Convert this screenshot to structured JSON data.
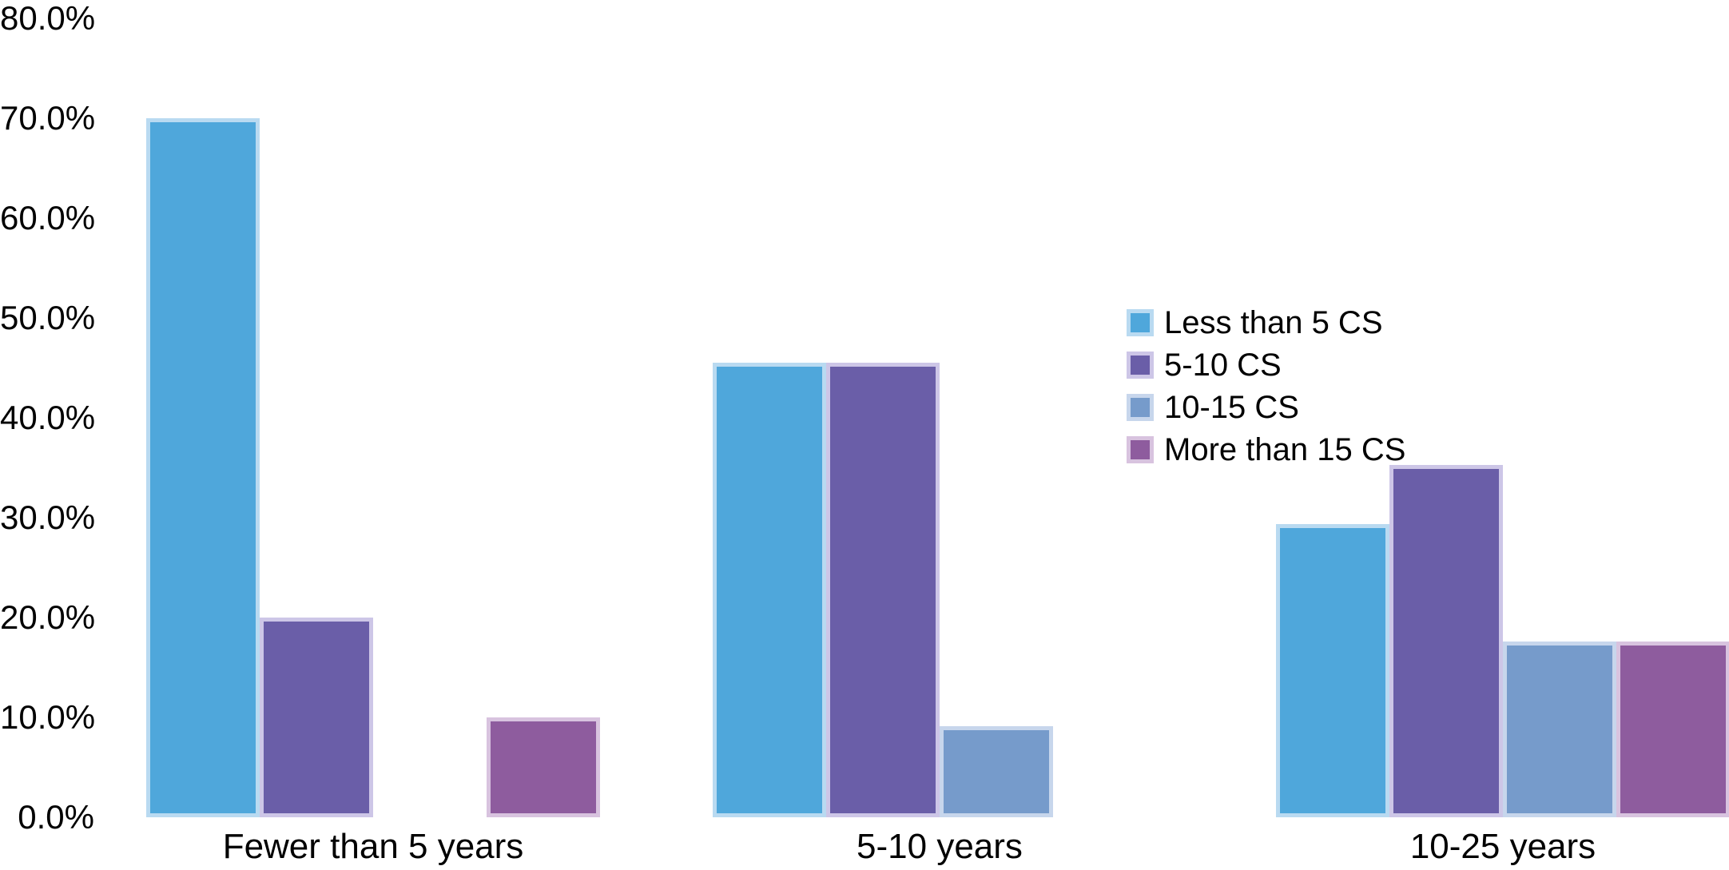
{
  "background_color": "#FFFFFF",
  "text_color": "#000000",
  "chart_data": {
    "type": "bar",
    "title": "",
    "xlabel": "",
    "ylabel": "",
    "categories": [
      "Fewer than 5 years",
      "5-10 years",
      "10-25 years"
    ],
    "series": [
      {
        "name": "Less than 5 CS",
        "color": "#4FA7DB",
        "border_color": "#B9DAF1",
        "values": [
          70.0,
          45.5,
          29.4
        ]
      },
      {
        "name": "5-10 CS",
        "color": "#6A5EA8",
        "border_color": "#CDC6E7",
        "values": [
          20.0,
          45.5,
          35.3
        ]
      },
      {
        "name": "10-15 CS",
        "color": "#769BCB",
        "border_color": "#C7D6EC",
        "values": [
          0,
          9.1,
          17.6
        ]
      },
      {
        "name": "More than 15 CS",
        "color": "#8E5C9E",
        "border_color": "#D8C3DF",
        "values": [
          10.0,
          0,
          17.6
        ]
      }
    ],
    "ylim": [
      0,
      80
    ],
    "y_tick_labels": [
      "80.0%",
      "70.0%",
      "60.0%",
      "50.0%",
      "40.0%",
      "30.0%",
      "20.0%",
      "10.0%",
      "0.0%"
    ],
    "grid": false,
    "axis_lines": false,
    "legend_position": "right-center",
    "value_format": "percent"
  }
}
